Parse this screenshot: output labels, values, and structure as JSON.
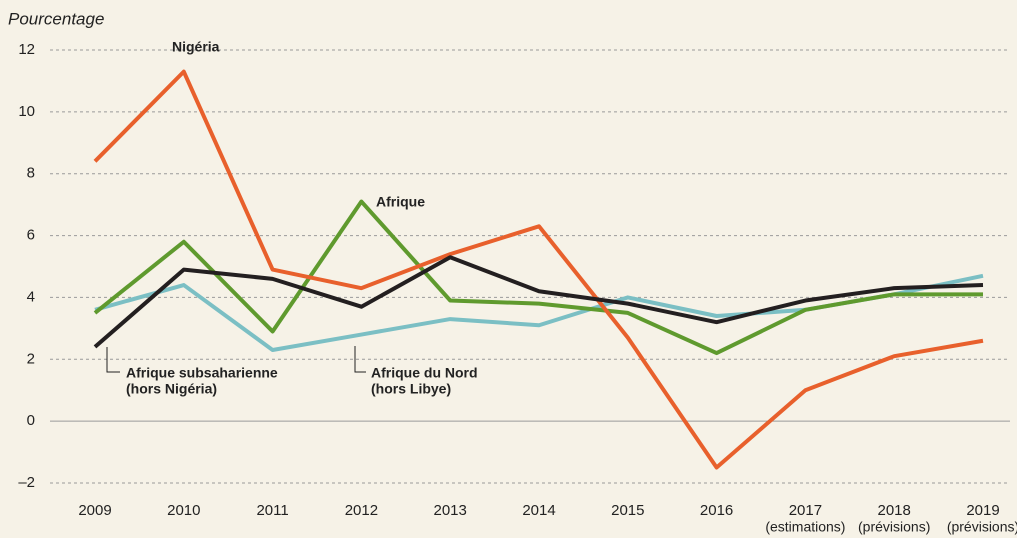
{
  "chart_data": {
    "type": "line",
    "y_axis_label": "Pourcentage",
    "categories": [
      "2009",
      "2010",
      "2011",
      "2012",
      "2013",
      "2014",
      "2015",
      "2016",
      "2017",
      "2018",
      "2019"
    ],
    "category_notes": [
      null,
      null,
      null,
      null,
      null,
      null,
      null,
      null,
      "(estimations)",
      "(prévisions)",
      "(prévisions)"
    ],
    "ylim": [
      -2,
      12
    ],
    "yticks": [
      {
        "value": -2,
        "label": "–2"
      },
      0,
      2,
      4,
      6,
      8,
      10,
      12
    ],
    "grid": true,
    "series": [
      {
        "name": "Nigéria",
        "color": "#e8602c",
        "values": [
          8.4,
          11.3,
          4.9,
          4.3,
          5.4,
          6.3,
          2.7,
          -1.5,
          1.0,
          2.1,
          2.6
        ]
      },
      {
        "name": "Afrique",
        "color": "#5f9a2e",
        "values": [
          3.5,
          5.8,
          2.9,
          7.1,
          3.9,
          3.8,
          3.5,
          2.2,
          3.6,
          4.1,
          4.1
        ]
      },
      {
        "name": "Afrique subsaharienne",
        "note": "(hors Nigéria)",
        "color": "#231f20",
        "values": [
          2.4,
          4.9,
          4.6,
          3.7,
          5.3,
          4.2,
          3.8,
          3.2,
          3.9,
          4.3,
          4.4
        ]
      },
      {
        "name": "Afrique du Nord",
        "note": "(hors Libye)",
        "color": "#7bbfc4",
        "values": [
          3.6,
          4.4,
          2.3,
          2.8,
          3.3,
          3.1,
          4.0,
          3.4,
          3.6,
          4.1,
          4.7
        ]
      }
    ]
  }
}
